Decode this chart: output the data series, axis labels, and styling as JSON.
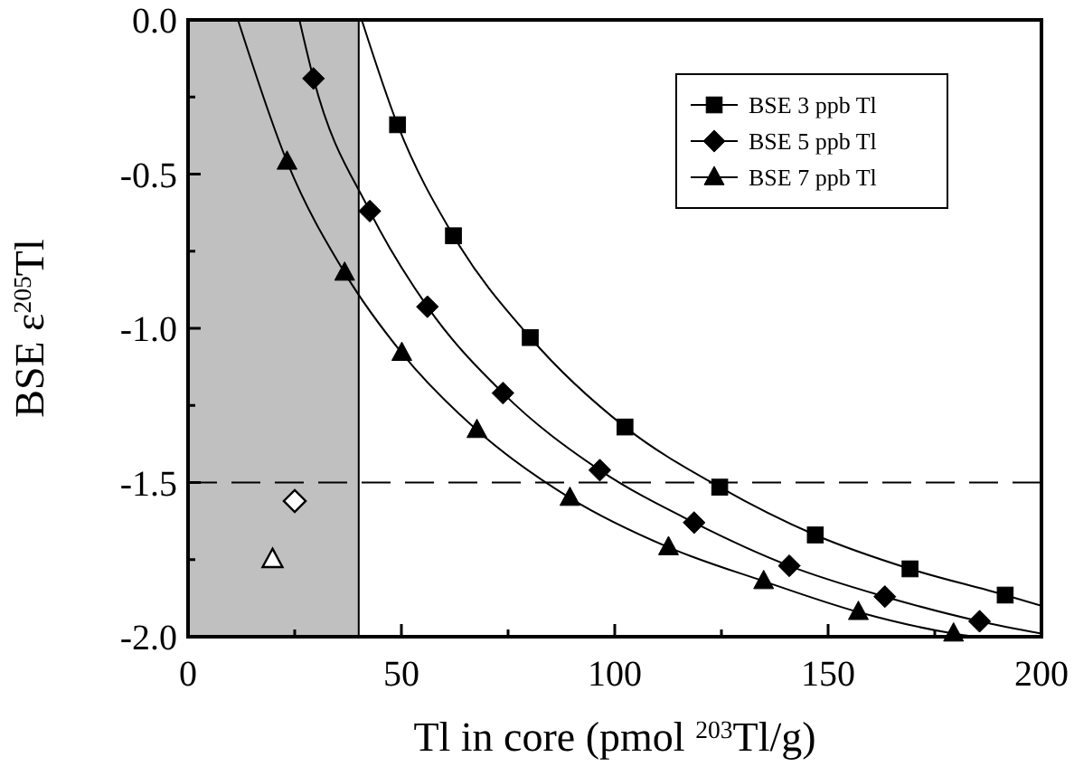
{
  "chart_data": {
    "type": "scatter",
    "xlabel": "Tl in core (pmol $^{203}$Tl/g)",
    "ylabel": "BSE ε$^{205}$Tl",
    "xlim": [
      0,
      200
    ],
    "ylim": [
      -2,
      0
    ],
    "xticks": [
      0,
      {
        "value": 25,
        "label": null
      },
      50,
      {
        "value": 75,
        "label": null
      },
      100,
      {
        "value": 125,
        "label": null
      },
      150,
      {
        "value": 175,
        "label": null
      },
      200
    ],
    "yticks": [
      {
        "value": -2,
        "label": "-2.0"
      },
      {
        "value": -1.75,
        "label": null
      },
      -1.5,
      {
        "value": -1.25,
        "label": null
      },
      {
        "value": -1,
        "label": "-1.0"
      },
      {
        "value": -0.75,
        "label": null
      },
      -0.5,
      {
        "value": -0.25,
        "label": null
      },
      {
        "value": 0,
        "label": "0.0"
      }
    ],
    "legend": "top right",
    "grid": false,
    "bands": [
      {
        "axis": "x",
        "from": 0,
        "to": 40,
        "color": "#c0c0c0"
      }
    ],
    "ref_lines": [
      {
        "axis": "y",
        "value": -1.5,
        "line_style": "dashed",
        "color": "#000000"
      }
    ],
    "series": [
      {
        "type": "line",
        "color": "#000000",
        "marker": "none",
        "x": [
          40.7,
          49.1,
          62.2,
          80.2,
          102.4,
          124.6,
          147,
          169.2,
          191.5,
          200
        ],
        "values": [
          0,
          -0.34,
          -0.7,
          -1.03,
          -1.32,
          -1.515,
          -1.67,
          -1.78,
          -1.865,
          -1.9
        ]
      },
      {
        "type": "line",
        "color": "#000000",
        "marker": "none",
        "x": [
          26.1,
          29.4,
          42.6,
          56.1,
          73.8,
          96.5,
          118.6,
          140.9,
          163.3,
          185.5,
          200
        ],
        "values": [
          0,
          -0.19,
          -0.62,
          -0.93,
          -1.21,
          -1.46,
          -1.63,
          -1.77,
          -1.87,
          -1.95,
          -1.99
        ]
      },
      {
        "type": "line",
        "color": "#000000",
        "marker": "none",
        "x": [
          11.7,
          23.2,
          36.7,
          50.1,
          67.7,
          89.5,
          112.6,
          134.9,
          157.1,
          179.4,
          184
        ],
        "values": [
          0,
          -0.46,
          -0.82,
          -1.08,
          -1.33,
          -1.55,
          -1.71,
          -1.82,
          -1.92,
          -1.99,
          -2
        ]
      },
      {
        "name": "BSE 3 ppb Tl",
        "color": "#000000",
        "marker": "square",
        "x": [
          49.1,
          62.2,
          80.2,
          102.4,
          124.6,
          147,
          169.2,
          191.5
        ],
        "values": [
          -0.34,
          -0.7,
          -1.03,
          -1.32,
          -1.515,
          -1.67,
          -1.78,
          -1.865
        ]
      },
      {
        "name": "BSE 5 ppb Tl",
        "color": "#000000",
        "marker": "diamond",
        "x": [
          29.4,
          42.6,
          56.1,
          73.8,
          96.5,
          118.6,
          140.9,
          163.3,
          185.5
        ],
        "values": [
          -0.19,
          -0.62,
          -0.93,
          -1.21,
          -1.46,
          -1.63,
          -1.77,
          -1.87,
          -1.95
        ]
      },
      {
        "name": "BSE 7 ppb Tl",
        "color": "#000000",
        "marker": "triangle",
        "x": [
          23.2,
          36.7,
          50.1,
          67.7,
          89.5,
          112.6,
          134.9,
          157.1,
          179.4
        ],
        "values": [
          -0.46,
          -0.82,
          -1.08,
          -1.33,
          -1.55,
          -1.71,
          -1.82,
          -1.92,
          -1.99
        ]
      },
      {
        "color": "#ffffff",
        "marker": "diamond",
        "x": [
          25
        ],
        "values": [
          -1.56
        ]
      },
      {
        "color": "#ffffff",
        "marker": "triangle",
        "x": [
          19.8
        ],
        "values": [
          -1.75
        ]
      }
    ]
  }
}
